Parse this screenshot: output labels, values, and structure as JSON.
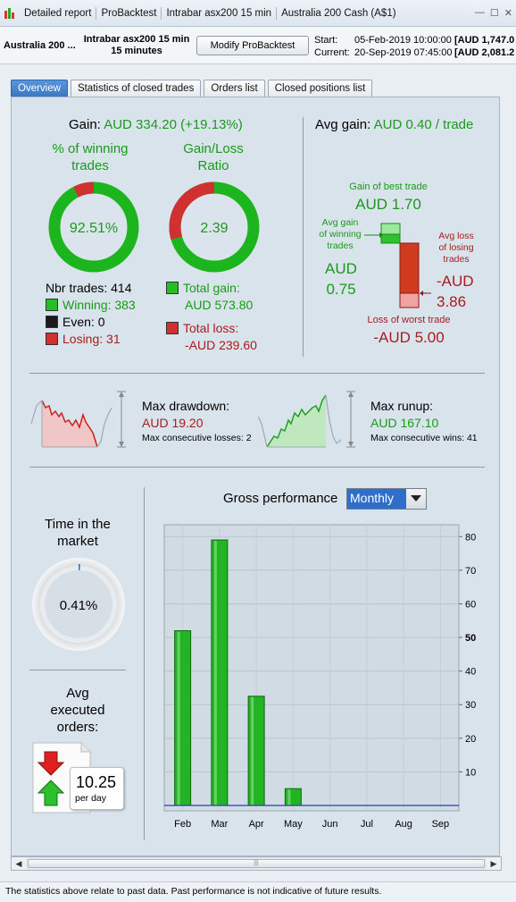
{
  "window": {
    "breadcrumbs": [
      "Detailed report",
      "ProBacktest",
      "Intrabar asx200 15 min",
      "Australia 200 Cash (A$1)"
    ],
    "buttons": [
      "—",
      "☐",
      "✕"
    ]
  },
  "header": {
    "instrument": "Australia 200 ...",
    "strategy_name": "Intrabar asx200 15 min",
    "timeframe": "15 minutes",
    "modify_button": "Modify ProBacktest",
    "start_label": "Start:",
    "start_value": "05-Feb-2019 10:00:00",
    "start_price": "[AUD 1,747.0",
    "current_label": "Current:",
    "current_value": "20-Sep-2019 07:45:00",
    "current_price": "[AUD 2,081.2"
  },
  "tabs": [
    {
      "label": "Overview",
      "active": true
    },
    {
      "label": "Statistics of closed trades",
      "active": false
    },
    {
      "label": "Orders list",
      "active": false
    },
    {
      "label": "Closed positions list",
      "active": false
    }
  ],
  "gain": {
    "label": "Gain:",
    "value": "AUD 334.20 (+19.13%)"
  },
  "winning_pct": {
    "title_line1": "% of winning",
    "title_line2": "trades",
    "value": "92.51%",
    "fraction": 0.9251
  },
  "gain_loss_ratio": {
    "title_line1": "Gain/Loss",
    "title_line2": "Ratio",
    "value": "2.39",
    "gain_fraction": 0.705
  },
  "trades": {
    "nbr_label": "Nbr trades: 414",
    "winning": "Winning: 383",
    "even": "Even: 0",
    "losing": "Losing: 31"
  },
  "totals": {
    "gain_label": "Total gain:",
    "gain_value": "AUD 573.80",
    "loss_label": "Total loss:",
    "loss_value": "-AUD 239.60"
  },
  "avg_gain": {
    "label": "Avg gain:",
    "value": "AUD 0.40 / trade",
    "best_label": "Gain of best trade",
    "best_value": "AUD 1.70",
    "avg_win_l1": "Avg gain",
    "avg_win_l2": "of winning",
    "avg_win_l3": "trades",
    "avg_win_cur": "AUD",
    "avg_win_num": "0.75",
    "avg_loss_l1": "Avg loss",
    "avg_loss_l2": "of losing",
    "avg_loss_l3": "trades",
    "avg_loss_cur": "-AUD",
    "avg_loss_num": "3.86",
    "worst_label": "Loss of worst trade",
    "worst_value": "-AUD 5.00"
  },
  "drawdown": {
    "label": "Max drawdown:",
    "value": "AUD 19.20",
    "consecutive": "Max consecutive losses: 2"
  },
  "runup": {
    "label": "Max runup:",
    "value": "AUD 167.10",
    "consecutive": "Max consecutive wins: 41"
  },
  "time_in_market": {
    "title_line1": "Time in the",
    "title_line2": "market",
    "value": "0.41%",
    "fraction": 0.0041
  },
  "executed_orders": {
    "title_line1": "Avg",
    "title_line2": "executed",
    "title_line3": "orders:",
    "value": "10.25",
    "unit": "per day"
  },
  "performance": {
    "label": "Gross performance",
    "period": "Monthly"
  },
  "chart_data": {
    "type": "bar",
    "categories": [
      "Feb",
      "Mar",
      "Apr",
      "May",
      "Jun",
      "Jul",
      "Aug",
      "Sep"
    ],
    "values": [
      52,
      79,
      32.5,
      5,
      0,
      0,
      0,
      0
    ],
    "ylim": [
      0,
      83
    ],
    "yticks": [
      10,
      20,
      30,
      40,
      50,
      60,
      70,
      80
    ],
    "bold_tick": 50,
    "grid": true,
    "bar_color": "#22b422"
  },
  "footer": {
    "text": "The statistics above relate to past data. Past performance is not indicative of future results."
  },
  "colors": {
    "gain": "#1a9a1a",
    "loss": "#a81c1c",
    "accent": "#2f6fc9"
  }
}
